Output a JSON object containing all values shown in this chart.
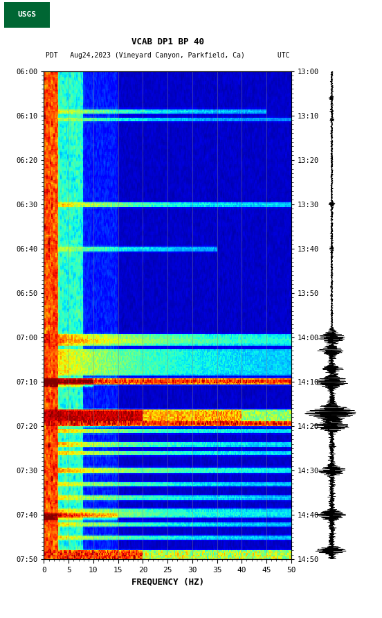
{
  "title_line1": "VCAB DP1 BP 40",
  "title_line2": "PDT   Aug24,2023 (Vineyard Canyon, Parkfield, Ca)        UTC",
  "xlabel": "FREQUENCY (HZ)",
  "freq_min": 0,
  "freq_max": 50,
  "freq_ticks": [
    0,
    5,
    10,
    15,
    20,
    25,
    30,
    35,
    40,
    45,
    50
  ],
  "time_start_left": "06:00",
  "time_end_left": "07:50",
  "time_start_right": "13:00",
  "time_end_right": "14:50",
  "left_yticks": [
    "06:00",
    "06:10",
    "06:20",
    "06:30",
    "06:40",
    "06:50",
    "07:00",
    "07:10",
    "07:20",
    "07:30",
    "07:40",
    "07:50"
  ],
  "right_yticks": [
    "13:00",
    "13:10",
    "13:20",
    "13:30",
    "13:40",
    "13:50",
    "14:00",
    "14:10",
    "14:20",
    "14:30",
    "14:40",
    "14:50"
  ],
  "vertical_grid_freqs": [
    5,
    10,
    15,
    20,
    25,
    30,
    35,
    40,
    45
  ],
  "colormap": "jet",
  "background_color": "#ffffff",
  "spectrogram_vmin": 0,
  "spectrogram_vmax": 1,
  "n_time": 330,
  "n_freq": 250,
  "seed": 42
}
